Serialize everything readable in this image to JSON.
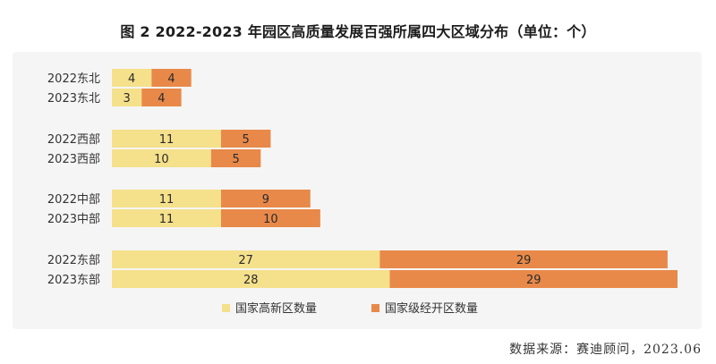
{
  "title": "图 2 2022-2023 年园区高质量发展百强所属四大区域分布（单位：个）",
  "source": "数据来源：赛迪顾问，2023.06",
  "colors": {
    "series1": "#f5e08c",
    "series2": "#e8894a",
    "panel": "#f5f5f5",
    "label": "#333333"
  },
  "chart_data": {
    "type": "bar",
    "orientation": "horizontal",
    "stacked": true,
    "categories": [
      "2022东北",
      "2023东北",
      "2022西部",
      "2023西部",
      "2022中部",
      "2023中部",
      "2022东部",
      "2023东部"
    ],
    "groups": [
      "东北",
      "西部",
      "中部",
      "东部"
    ],
    "series": [
      {
        "name": "国家高新区数量",
        "values": [
          4,
          3,
          11,
          10,
          11,
          11,
          27,
          28
        ]
      },
      {
        "name": "国家级经开区数量",
        "values": [
          4,
          4,
          5,
          5,
          9,
          10,
          29,
          29
        ]
      }
    ],
    "xlim": [
      0,
      57
    ],
    "grid": false,
    "legend": "bottom-center",
    "data_labels": true
  }
}
